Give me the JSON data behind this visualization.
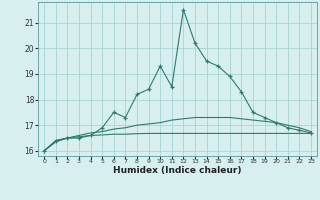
{
  "xlabel": "Humidex (Indice chaleur)",
  "x": [
    0,
    1,
    2,
    3,
    4,
    5,
    6,
    7,
    8,
    9,
    10,
    11,
    12,
    13,
    14,
    15,
    16,
    17,
    18,
    19,
    20,
    21,
    22,
    23
  ],
  "line1": [
    16.0,
    16.4,
    16.5,
    16.5,
    16.6,
    16.9,
    17.5,
    17.3,
    18.2,
    18.4,
    19.3,
    18.5,
    21.5,
    20.2,
    19.5,
    19.3,
    18.9,
    18.3,
    17.5,
    17.3,
    17.1,
    16.9,
    16.8,
    16.7
  ],
  "line2": [
    16.0,
    16.4,
    16.5,
    16.6,
    16.7,
    16.75,
    16.85,
    16.9,
    17.0,
    17.05,
    17.1,
    17.2,
    17.25,
    17.3,
    17.3,
    17.3,
    17.3,
    17.25,
    17.2,
    17.15,
    17.1,
    17.0,
    16.9,
    16.75
  ],
  "line3": [
    16.0,
    16.35,
    16.5,
    16.55,
    16.6,
    16.62,
    16.65,
    16.65,
    16.67,
    16.68,
    16.68,
    16.68,
    16.68,
    16.68,
    16.68,
    16.68,
    16.68,
    16.68,
    16.68,
    16.68,
    16.68,
    16.68,
    16.68,
    16.68
  ],
  "line_color": "#2e7b6e",
  "bg_color": "#d8efef",
  "grid_color": "#a8d4d4",
  "ylim": [
    15.8,
    21.8
  ],
  "yticks": [
    16,
    17,
    18,
    19,
    20,
    21
  ],
  "xlim": [
    -0.5,
    23.5
  ]
}
